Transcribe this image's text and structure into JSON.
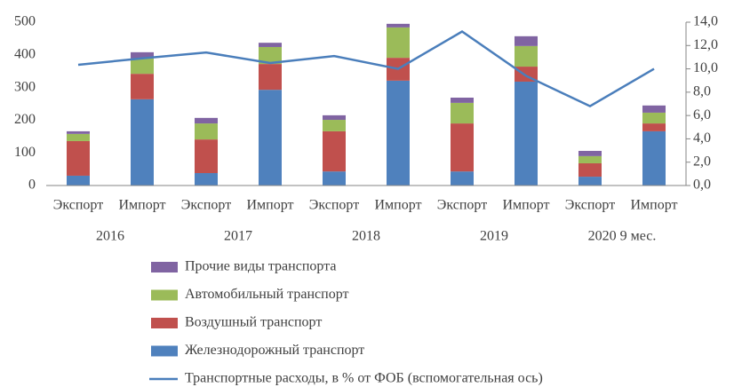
{
  "chart_data": {
    "type": "bar",
    "stacked": true,
    "categories": [
      "Экспорт",
      "Импорт",
      "Экспорт",
      "Импорт",
      "Экспорт",
      "Импорт",
      "Экспорт",
      "Импорт",
      "Экспорт",
      "Импорт"
    ],
    "groups": [
      "2016",
      "2017",
      "2018",
      "2019",
      "2020 9 мес."
    ],
    "series": [
      {
        "name": "Железнодорожный транспорт",
        "color": "#4f81bd",
        "values": [
          30,
          264,
          38,
          293,
          43,
          321,
          43,
          318,
          27,
          166
        ]
      },
      {
        "name": "Воздушный транспорт",
        "color": "#c0504d",
        "values": [
          106,
          78,
          103,
          79,
          123,
          70,
          147,
          46,
          41,
          24
        ]
      },
      {
        "name": "Автомобильный транспорт",
        "color": "#9bbb59",
        "values": [
          22,
          47,
          49,
          52,
          35,
          93,
          63,
          63,
          22,
          33
        ]
      },
      {
        "name": "Прочие виды транспорта",
        "color": "#8064a2",
        "values": [
          8,
          19,
          17,
          13,
          14,
          11,
          16,
          30,
          16,
          22
        ]
      },
      {
        "name": "Транспортные расходы, в % от ФОБ (вспомогательная ось)",
        "color": "#4a7ebb",
        "type": "line",
        "axis": "y2",
        "values": [
          10.35,
          10.9,
          11.4,
          10.5,
          11.1,
          10.0,
          13.2,
          9.4,
          6.8,
          10.0
        ]
      }
    ],
    "ylim": [
      0,
      500
    ],
    "yticks": [
      0,
      100,
      200,
      300,
      400,
      500
    ],
    "y2lim": [
      0,
      14
    ],
    "y2ticks": [
      {
        "value": 0,
        "label": "0,0"
      },
      {
        "value": 2,
        "label": "2,0"
      },
      {
        "value": 4,
        "label": "4,0"
      },
      {
        "value": 6,
        "label": "6,0"
      },
      {
        "value": 8,
        "label": "8,0"
      },
      {
        "value": 10,
        "label": "10,0"
      },
      {
        "value": 12,
        "label": "12,0"
      },
      {
        "value": 14,
        "label": "14,0"
      }
    ],
    "grid": false,
    "legend": "bottom"
  }
}
